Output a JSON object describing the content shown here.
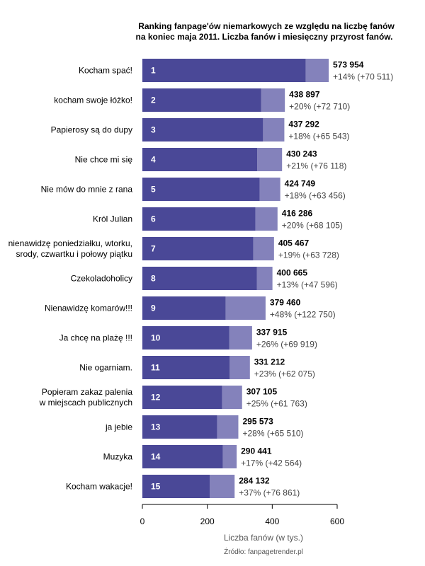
{
  "chart_data": {
    "type": "bar",
    "orientation": "horizontal",
    "title": [
      "Ranking fanpage'ów niemarkowych ze względu na liczbę fanów",
      "na koniec maja 2011. Liczba fanów i miesięczny przyrost fanów."
    ],
    "xlabel": "Liczba fanów (w tys.)",
    "source": "Źródło: fanpagetrender.pl",
    "xlim": [
      0,
      600
    ],
    "xticks": [
      0,
      200,
      400,
      600
    ],
    "colors": {
      "base": "#4a4897",
      "growth": "#8482bb"
    },
    "categories": [
      [
        "Kocham spać!"
      ],
      [
        "kocham swoje łóżko!"
      ],
      [
        "Papierosy są do dupy"
      ],
      [
        "Nie chce mi się"
      ],
      [
        "Nie mów do mnie z rana"
      ],
      [
        "Król Julian"
      ],
      [
        "nienawidzę poniedziałku, wtorku,",
        "srody, czwartku i połowy piątku"
      ],
      [
        "Czekoladoholicy"
      ],
      [
        "Nienawidzę komarów!!!"
      ],
      [
        "Ja chcę na plażę !!!"
      ],
      [
        "Nie ogarniam."
      ],
      [
        "Popieram zakaz palenia",
        "w miejscach publicznych"
      ],
      [
        "ja jebie"
      ],
      [
        "Muzyka"
      ],
      [
        "Kocham wakacje!"
      ]
    ],
    "ranks": [
      "1",
      "2",
      "3",
      "4",
      "5",
      "6",
      "7",
      "8",
      "9",
      "10",
      "11",
      "12",
      "13",
      "14",
      "15"
    ],
    "values": [
      573.954,
      438.897,
      437.292,
      430.243,
      424.749,
      416.286,
      405.467,
      400.665,
      379.46,
      337.915,
      331.212,
      307.105,
      295.573,
      290.441,
      284.132
    ],
    "growth": [
      70.511,
      72.71,
      65.543,
      76.118,
      63.456,
      68.105,
      63.728,
      47.596,
      122.75,
      69.919,
      62.075,
      61.763,
      65.51,
      42.564,
      76.861
    ],
    "value_labels": [
      "573 954",
      "438 897",
      "437 292",
      "430 243",
      "424 749",
      "416 286",
      "405 467",
      "400 665",
      "379 460",
      "337 915",
      "331 212",
      "307 105",
      "295 573",
      "290 441",
      "284 132"
    ],
    "growth_labels": [
      "+14% (+70 511)",
      "+20% (+72 710)",
      "+18% (+65 543)",
      "+21% (+76 118)",
      "+18% (+63 456)",
      "+20% (+68 105)",
      "+19% (+63 728)",
      "+13% (+47 596)",
      "+48% (+122 750)",
      "+26% (+69 919)",
      "+23% (+62 075)",
      "+25% (+61 763)",
      "+28% (+65 510)",
      "+17% (+42 564)",
      "+37% (+76 861)"
    ]
  }
}
